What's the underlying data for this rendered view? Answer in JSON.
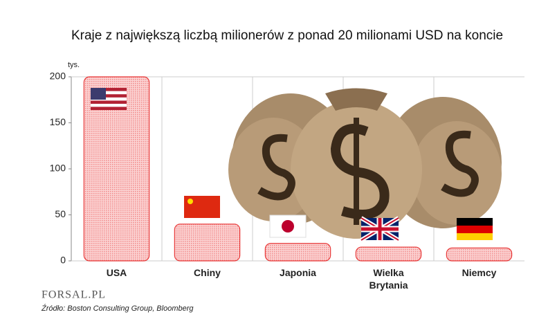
{
  "chart_data": {
    "type": "bar",
    "title": "Kraje z największą liczbą milionerów  z ponad 20 milionami USD na koncie",
    "y_label": "tys.",
    "categories": [
      "USA",
      "Chiny",
      "Japonia",
      "Wielka Brytania",
      "Niemcy"
    ],
    "values": [
      200,
      40,
      19,
      15,
      14
    ],
    "color": "#e83a3a",
    "ylim": [
      0,
      200
    ],
    "yticks": [
      0,
      50,
      100,
      150,
      200
    ]
  },
  "logo": "FORSAL.PL",
  "source": "Źródło: Boston Consulting Group, Bloomberg"
}
